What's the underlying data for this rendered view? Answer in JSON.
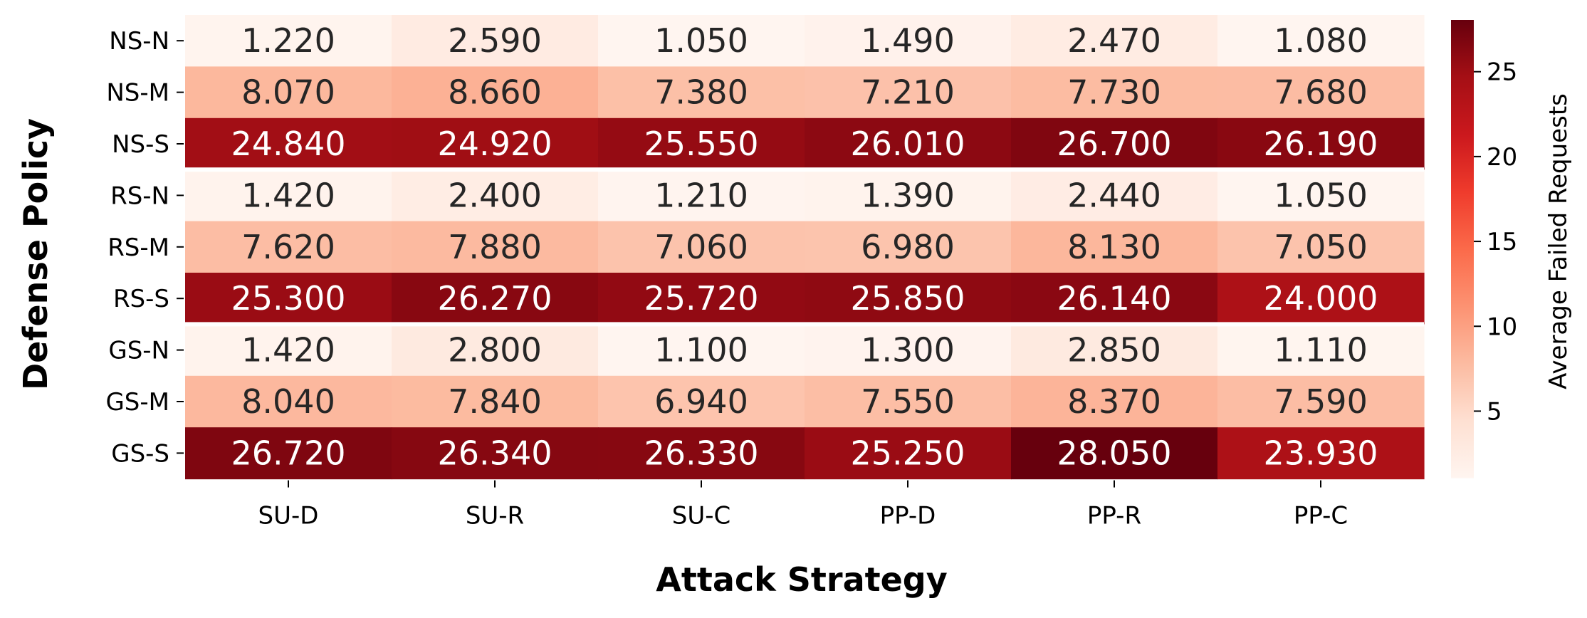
{
  "chart_data": {
    "type": "heatmap",
    "title": "",
    "xlabel": "Attack Strategy",
    "ylabel": "Defense Policy",
    "x_categories": [
      "SU-D",
      "SU-R",
      "SU-C",
      "PP-D",
      "PP-R",
      "PP-C"
    ],
    "y_categories": [
      "NS-N",
      "NS-M",
      "NS-S",
      "RS-N",
      "RS-M",
      "RS-S",
      "GS-N",
      "GS-M",
      "GS-S"
    ],
    "values": [
      [
        1.22,
        2.59,
        1.05,
        1.49,
        2.47,
        1.08
      ],
      [
        8.07,
        8.66,
        7.38,
        7.21,
        7.73,
        7.68
      ],
      [
        24.84,
        24.92,
        25.55,
        26.01,
        26.7,
        26.19
      ],
      [
        1.42,
        2.4,
        1.21,
        1.39,
        2.44,
        1.05
      ],
      [
        7.62,
        7.88,
        7.06,
        6.98,
        8.13,
        7.05
      ],
      [
        25.3,
        26.27,
        25.72,
        25.85,
        26.14,
        24.0
      ],
      [
        1.42,
        2.8,
        1.1,
        1.3,
        2.85,
        1.11
      ],
      [
        8.04,
        7.84,
        6.94,
        7.55,
        8.37,
        7.59
      ],
      [
        26.72,
        26.34,
        26.33,
        25.25,
        28.05,
        23.93
      ]
    ],
    "value_labels": [
      [
        "1.220",
        "2.590",
        "1.050",
        "1.490",
        "2.470",
        "1.080"
      ],
      [
        "8.070",
        "8.660",
        "7.380",
        "7.210",
        "7.730",
        "7.680"
      ],
      [
        "24.840",
        "24.920",
        "25.550",
        "26.010",
        "26.700",
        "26.190"
      ],
      [
        "1.420",
        "2.400",
        "1.210",
        "1.390",
        "2.440",
        "1.050"
      ],
      [
        "7.620",
        "7.880",
        "7.060",
        "6.980",
        "8.130",
        "7.050"
      ],
      [
        "25.300",
        "26.270",
        "25.720",
        "25.850",
        "26.140",
        "24.000"
      ],
      [
        "1.420",
        "2.800",
        "1.100",
        "1.300",
        "2.850",
        "1.110"
      ],
      [
        "8.040",
        "7.840",
        "6.940",
        "7.550",
        "8.370",
        "7.590"
      ],
      [
        "26.720",
        "26.340",
        "26.330",
        "25.250",
        "28.050",
        "23.930"
      ]
    ],
    "row_group_breaks_after": [
      2,
      5
    ],
    "colorbar": {
      "label": "Average Failed Requests",
      "range": [
        1.05,
        28.05
      ],
      "ticks": [
        5,
        10,
        15,
        20,
        25
      ],
      "tick_labels": [
        "5",
        "10",
        "15",
        "20",
        "25"
      ],
      "colormap": "Reds",
      "stops": [
        "#fff5f0",
        "#fee0d2",
        "#fcbba1",
        "#fc9272",
        "#fb6a4a",
        "#ef3b2c",
        "#cb181d",
        "#a50f15",
        "#67000d"
      ]
    },
    "text_colors": {
      "dark_cell": "#ffffff",
      "light_cell": "#262626"
    },
    "grid": false,
    "legend": "colorbar-right"
  }
}
